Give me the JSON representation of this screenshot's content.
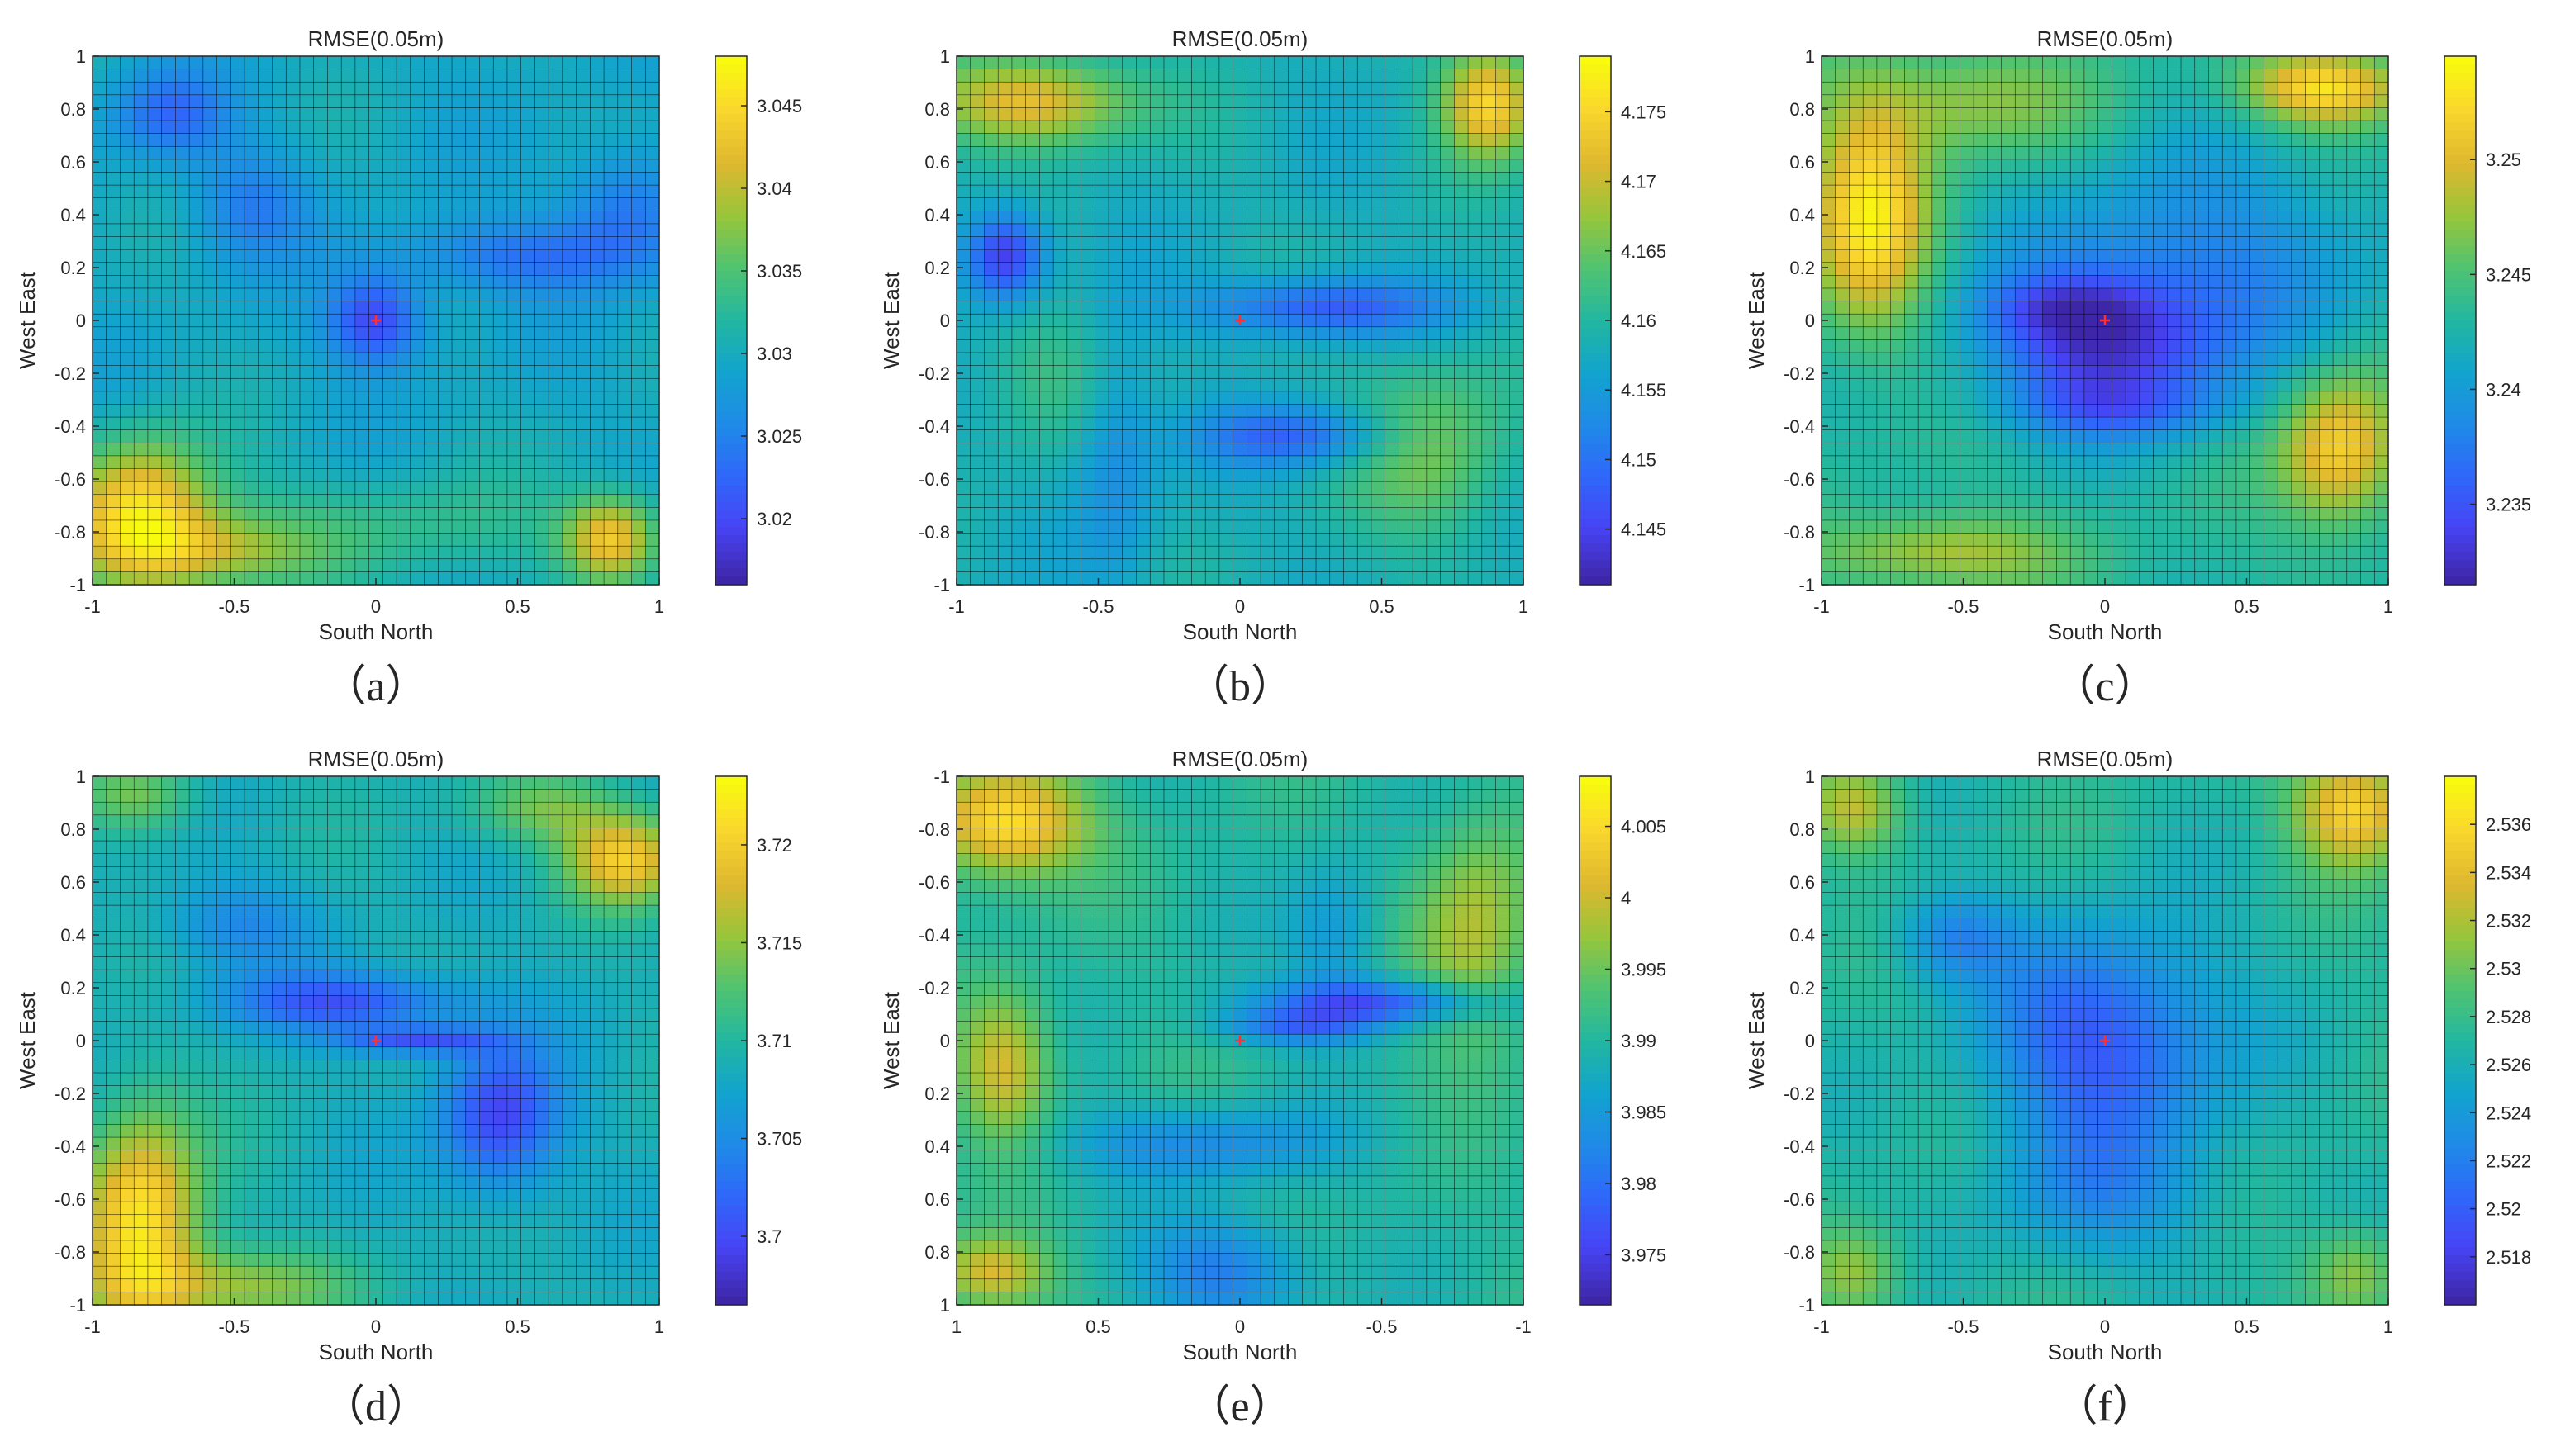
{
  "figure": {
    "panels": [
      {
        "tag": "（a）"
      },
      {
        "tag": "（b）"
      },
      {
        "tag": "（c）"
      },
      {
        "tag": "（d）"
      },
      {
        "tag": "（e）"
      },
      {
        "tag": "（f）"
      }
    ]
  },
  "colors": {
    "colormap": "parula",
    "stops": [
      "#3e26a8",
      "#4743f4",
      "#2f67fa",
      "#1f8be6",
      "#12a4cd",
      "#22b7a0",
      "#50c370",
      "#98c53b",
      "#dfb82f",
      "#f9d52d",
      "#f9fb0e"
    ],
    "marker": "#ff3030",
    "gridline": "#000000"
  },
  "chart_data": [
    {
      "type": "heatmap",
      "panel": "a",
      "title": "RMSE(0.05m)",
      "xlabel": "South North",
      "ylabel": "West East",
      "x_range": [
        -1,
        1
      ],
      "y_range": [
        -1,
        1
      ],
      "x_reversed": false,
      "y_reversed": false,
      "x_ticks": [
        "-1",
        "-0.5",
        "0",
        "0.5",
        "1"
      ],
      "y_ticks": [
        "1",
        "0.8",
        "0.6",
        "0.4",
        "0.2",
        "0",
        "-0.2",
        "-0.4",
        "-0.6",
        "-0.8",
        "-1"
      ],
      "grid": true,
      "grid_size": 41,
      "colorbar": {
        "range": [
          3.016,
          3.048
        ],
        "ticks": [
          "3.045",
          "3.04",
          "3.035",
          "3.03",
          "3.025",
          "3.02"
        ]
      },
      "min_point": [
        0,
        0
      ],
      "field": {
        "base": 0.42,
        "blobs": [
          {
            "x": 0,
            "y": 0,
            "sx": 0.12,
            "sy": 0.12,
            "a": -0.32
          },
          {
            "x": 0.55,
            "y": 0.25,
            "sx": 0.35,
            "sy": 0.1,
            "a": -0.18
          },
          {
            "x": 0.9,
            "y": 0.45,
            "sx": 0.15,
            "sy": 0.15,
            "a": -0.18
          },
          {
            "x": -0.75,
            "y": 0.8,
            "sx": 0.15,
            "sy": 0.12,
            "a": -0.2
          },
          {
            "x": -0.45,
            "y": 0.45,
            "sx": 0.15,
            "sy": 0.15,
            "a": -0.15
          },
          {
            "x": -0.85,
            "y": -0.75,
            "sx": 0.18,
            "sy": 0.2,
            "a": 0.5
          },
          {
            "x": -0.6,
            "y": -0.9,
            "sx": 0.25,
            "sy": 0.1,
            "a": 0.25
          },
          {
            "x": 0.85,
            "y": -0.85,
            "sx": 0.12,
            "sy": 0.12,
            "a": 0.45
          },
          {
            "x": 0,
            "y": -0.8,
            "sx": 0.5,
            "sy": 0.15,
            "a": 0.12
          }
        ]
      }
    },
    {
      "type": "heatmap",
      "panel": "b",
      "title": "RMSE(0.05m)",
      "xlabel": "South North",
      "ylabel": "West East",
      "x_range": [
        -1,
        1
      ],
      "y_range": [
        -1,
        1
      ],
      "x_reversed": false,
      "y_reversed": false,
      "x_ticks": [
        "-1",
        "-0.5",
        "0",
        "0.5",
        "1"
      ],
      "y_ticks": [
        "1",
        "0.8",
        "0.6",
        "0.4",
        "0.2",
        "0",
        "-0.2",
        "-0.4",
        "-0.6",
        "-0.8",
        "-1"
      ],
      "grid": true,
      "grid_size": 41,
      "colorbar": {
        "range": [
          4.141,
          4.179
        ],
        "ticks": [
          "4.175",
          "4.17",
          "4.165",
          "4.16",
          "4.155",
          "4.15",
          "4.145"
        ]
      },
      "min_point": [
        0,
        0
      ],
      "field": {
        "base": 0.45,
        "blobs": [
          {
            "x": 0.3,
            "y": 0.05,
            "sx": 0.3,
            "sy": 0.08,
            "a": -0.3
          },
          {
            "x": 0.2,
            "y": -0.45,
            "sx": 0.25,
            "sy": 0.08,
            "a": -0.25
          },
          {
            "x": -0.85,
            "y": 0.25,
            "sx": 0.1,
            "sy": 0.12,
            "a": -0.4
          },
          {
            "x": -0.45,
            "y": -0.5,
            "sx": 0.1,
            "sy": 0.35,
            "a": -0.15
          },
          {
            "x": -0.75,
            "y": 0.85,
            "sx": 0.25,
            "sy": 0.12,
            "a": 0.4
          },
          {
            "x": 0.9,
            "y": 0.85,
            "sx": 0.12,
            "sy": 0.15,
            "a": 0.45
          },
          {
            "x": 0.7,
            "y": -0.5,
            "sx": 0.2,
            "sy": 0.25,
            "a": 0.2
          },
          {
            "x": -0.7,
            "y": -0.2,
            "sx": 0.2,
            "sy": 0.2,
            "a": 0.1
          }
        ]
      }
    },
    {
      "type": "heatmap",
      "panel": "c",
      "title": "RMSE(0.05m)",
      "xlabel": "South North",
      "ylabel": "West East",
      "x_range": [
        -1,
        1
      ],
      "y_range": [
        -1,
        1
      ],
      "x_reversed": false,
      "y_reversed": false,
      "x_ticks": [
        "-1",
        "-0.5",
        "0",
        "0.5",
        "1"
      ],
      "y_ticks": [
        "1",
        "0.8",
        "0.6",
        "0.4",
        "0.2",
        "0",
        "-0.2",
        "-0.4",
        "-0.6",
        "-0.8",
        "-1"
      ],
      "grid": true,
      "grid_size": 41,
      "colorbar": {
        "range": [
          3.2315,
          3.2545
        ],
        "ticks": [
          "3.25",
          "3.245",
          "3.24",
          "3.235"
        ]
      },
      "min_point": [
        0,
        0
      ],
      "field": {
        "base": 0.5,
        "blobs": [
          {
            "x": 0,
            "y": -0.1,
            "sx": 0.3,
            "sy": 0.2,
            "a": -0.4
          },
          {
            "x": 0.35,
            "y": 0.25,
            "sx": 0.45,
            "sy": 0.3,
            "a": -0.2
          },
          {
            "x": -0.15,
            "y": 0.05,
            "sx": 0.2,
            "sy": 0.08,
            "a": -0.15
          },
          {
            "x": 0.05,
            "y": -0.35,
            "sx": 0.3,
            "sy": 0.08,
            "a": -0.15
          },
          {
            "x": -0.85,
            "y": 0.4,
            "sx": 0.15,
            "sy": 0.3,
            "a": 0.45
          },
          {
            "x": -0.5,
            "y": 0.85,
            "sx": 0.3,
            "sy": 0.15,
            "a": 0.2
          },
          {
            "x": 0.8,
            "y": 0.9,
            "sx": 0.2,
            "sy": 0.1,
            "a": 0.45
          },
          {
            "x": 0.85,
            "y": -0.5,
            "sx": 0.15,
            "sy": 0.2,
            "a": 0.4
          },
          {
            "x": -0.6,
            "y": -0.9,
            "sx": 0.3,
            "sy": 0.1,
            "a": 0.25
          }
        ]
      }
    },
    {
      "type": "heatmap",
      "panel": "d",
      "title": "RMSE(0.05m)",
      "xlabel": "South North",
      "ylabel": "West East",
      "x_range": [
        -1,
        1
      ],
      "y_range": [
        -1,
        1
      ],
      "x_reversed": false,
      "y_reversed": false,
      "x_ticks": [
        "-1",
        "-0.5",
        "0",
        "0.5",
        "1"
      ],
      "y_ticks": [
        "1",
        "0.8",
        "0.6",
        "0.4",
        "0.2",
        "0",
        "-0.2",
        "-0.4",
        "-0.6",
        "-0.8",
        "-1"
      ],
      "grid": true,
      "grid_size": 41,
      "colorbar": {
        "range": [
          3.6965,
          3.7235
        ],
        "ticks": [
          "3.72",
          "3.715",
          "3.71",
          "3.705",
          "3.7"
        ]
      },
      "min_point": [
        0,
        0
      ],
      "field": {
        "base": 0.45,
        "blobs": [
          {
            "x": -0.1,
            "y": 0.15,
            "sx": 0.3,
            "sy": 0.08,
            "a": -0.3
          },
          {
            "x": 0.15,
            "y": 0,
            "sx": 0.2,
            "sy": 0.04,
            "a": -0.3
          },
          {
            "x": 0.45,
            "y": -0.3,
            "sx": 0.15,
            "sy": 0.2,
            "a": -0.35
          },
          {
            "x": -0.5,
            "y": 0.45,
            "sx": 0.2,
            "sy": 0.12,
            "a": -0.15
          },
          {
            "x": -0.85,
            "y": -0.7,
            "sx": 0.15,
            "sy": 0.3,
            "a": 0.5
          },
          {
            "x": -0.55,
            "y": -0.95,
            "sx": 0.3,
            "sy": 0.1,
            "a": 0.25
          },
          {
            "x": 0.9,
            "y": 0.7,
            "sx": 0.15,
            "sy": 0.12,
            "a": 0.4
          },
          {
            "x": 0.6,
            "y": 0.9,
            "sx": 0.2,
            "sy": 0.1,
            "a": 0.2
          },
          {
            "x": -0.85,
            "y": 0.95,
            "sx": 0.15,
            "sy": 0.1,
            "a": 0.2
          }
        ]
      }
    },
    {
      "type": "heatmap",
      "panel": "e",
      "title": "RMSE(0.05m)",
      "xlabel": "South North",
      "ylabel": "West East",
      "x_range": [
        -1,
        1
      ],
      "y_range": [
        -1,
        1
      ],
      "x_reversed": true,
      "y_reversed": true,
      "x_ticks": [
        "1",
        "0.5",
        "0",
        "-0.5",
        "-1"
      ],
      "y_ticks": [
        "-1",
        "-0.8",
        "-0.6",
        "-0.4",
        "-0.2",
        "0",
        "0.2",
        "0.4",
        "0.6",
        "0.8",
        "1"
      ],
      "grid": true,
      "grid_size": 41,
      "colorbar": {
        "range": [
          3.9715,
          4.0085
        ],
        "ticks": [
          "4.005",
          "4",
          "3.995",
          "3.99",
          "3.985",
          "3.98",
          "3.975"
        ]
      },
      "min_point": [
        0,
        0
      ],
      "field": {
        "base": 0.5,
        "blobs": [
          {
            "x": -0.5,
            "y": -0.15,
            "sx": 0.3,
            "sy": 0.06,
            "a": -0.35
          },
          {
            "x": -0.2,
            "y": -0.05,
            "sx": 0.2,
            "sy": 0.05,
            "a": -0.25
          },
          {
            "x": 0.15,
            "y": 0.4,
            "sx": 0.35,
            "sy": 0.1,
            "a": -0.2
          },
          {
            "x": 0.05,
            "y": 0.9,
            "sx": 0.2,
            "sy": 0.15,
            "a": -0.25
          },
          {
            "x": -0.35,
            "y": -0.4,
            "sx": 0.12,
            "sy": 0.2,
            "a": -0.15
          },
          {
            "x": 0.85,
            "y": -0.85,
            "sx": 0.2,
            "sy": 0.15,
            "a": 0.45
          },
          {
            "x": 0.85,
            "y": 0.1,
            "sx": 0.12,
            "sy": 0.2,
            "a": 0.3
          },
          {
            "x": 0.9,
            "y": 0.9,
            "sx": 0.15,
            "sy": 0.1,
            "a": 0.3
          },
          {
            "x": -0.85,
            "y": -0.4,
            "sx": 0.15,
            "sy": 0.3,
            "a": 0.25
          }
        ]
      }
    },
    {
      "type": "heatmap",
      "panel": "f",
      "title": "RMSE(0.05m)",
      "xlabel": "South North",
      "ylabel": "West East",
      "x_range": [
        -1,
        1
      ],
      "y_range": [
        -1,
        1
      ],
      "x_reversed": false,
      "y_reversed": false,
      "x_ticks": [
        "-1",
        "-0.5",
        "0",
        "0.5",
        "1"
      ],
      "y_ticks": [
        "1",
        "0.8",
        "0.6",
        "0.4",
        "0.2",
        "0",
        "-0.2",
        "-0.4",
        "-0.6",
        "-0.8",
        "-1"
      ],
      "grid": true,
      "grid_size": 41,
      "colorbar": {
        "range": [
          2.516,
          2.538
        ],
        "ticks": [
          "2.536",
          "2.534",
          "2.532",
          "2.53",
          "2.528",
          "2.526",
          "2.524",
          "2.522",
          "2.52",
          "2.518"
        ]
      },
      "min_point": [
        0,
        0
      ],
      "field": {
        "base": 0.5,
        "blobs": [
          {
            "x": 0,
            "y": 0,
            "sx": 0.3,
            "sy": 0.3,
            "a": -0.35
          },
          {
            "x": 0,
            "y": -0.6,
            "sx": 0.3,
            "sy": 0.2,
            "a": -0.15
          },
          {
            "x": -0.55,
            "y": 0.4,
            "sx": 0.15,
            "sy": 0.12,
            "a": -0.2
          },
          {
            "x": 0.9,
            "y": 0.9,
            "sx": 0.15,
            "sy": 0.15,
            "a": 0.4
          },
          {
            "x": -0.9,
            "y": 0.9,
            "sx": 0.12,
            "sy": 0.12,
            "a": 0.25
          },
          {
            "x": -0.9,
            "y": -0.9,
            "sx": 0.12,
            "sy": 0.12,
            "a": 0.2
          },
          {
            "x": 0.9,
            "y": -0.9,
            "sx": 0.12,
            "sy": 0.12,
            "a": 0.2
          }
        ]
      }
    }
  ]
}
